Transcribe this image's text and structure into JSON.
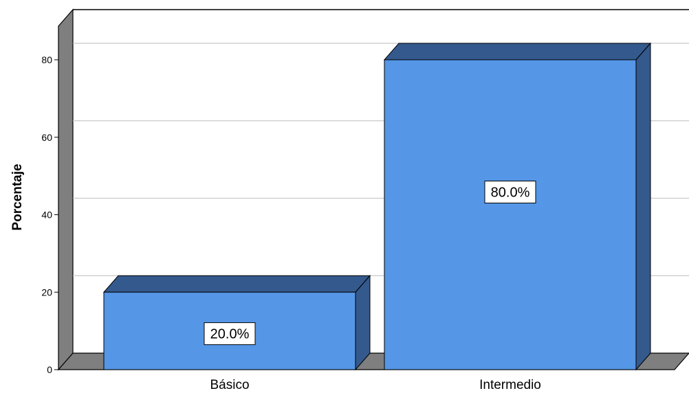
{
  "chart_data": {
    "type": "bar",
    "categories": [
      "Básico",
      "Intermedio"
    ],
    "values": [
      20.0,
      80.0
    ],
    "data_labels": [
      "20.0%",
      "80.0%"
    ],
    "title": "",
    "xlabel": "",
    "ylabel": "Porcentaje",
    "ylim": [
      0,
      80
    ],
    "yticks": [
      "0",
      "20",
      "40",
      "60",
      "80"
    ],
    "grid": true,
    "style": "3d",
    "colors": {
      "bar_face": "#5596E6",
      "bar_top": "#34598D",
      "bar_side": "#34598D",
      "wall": "#7F7F7F",
      "grid": "#C8C8C8",
      "label_box": "#FFFFFF"
    }
  }
}
